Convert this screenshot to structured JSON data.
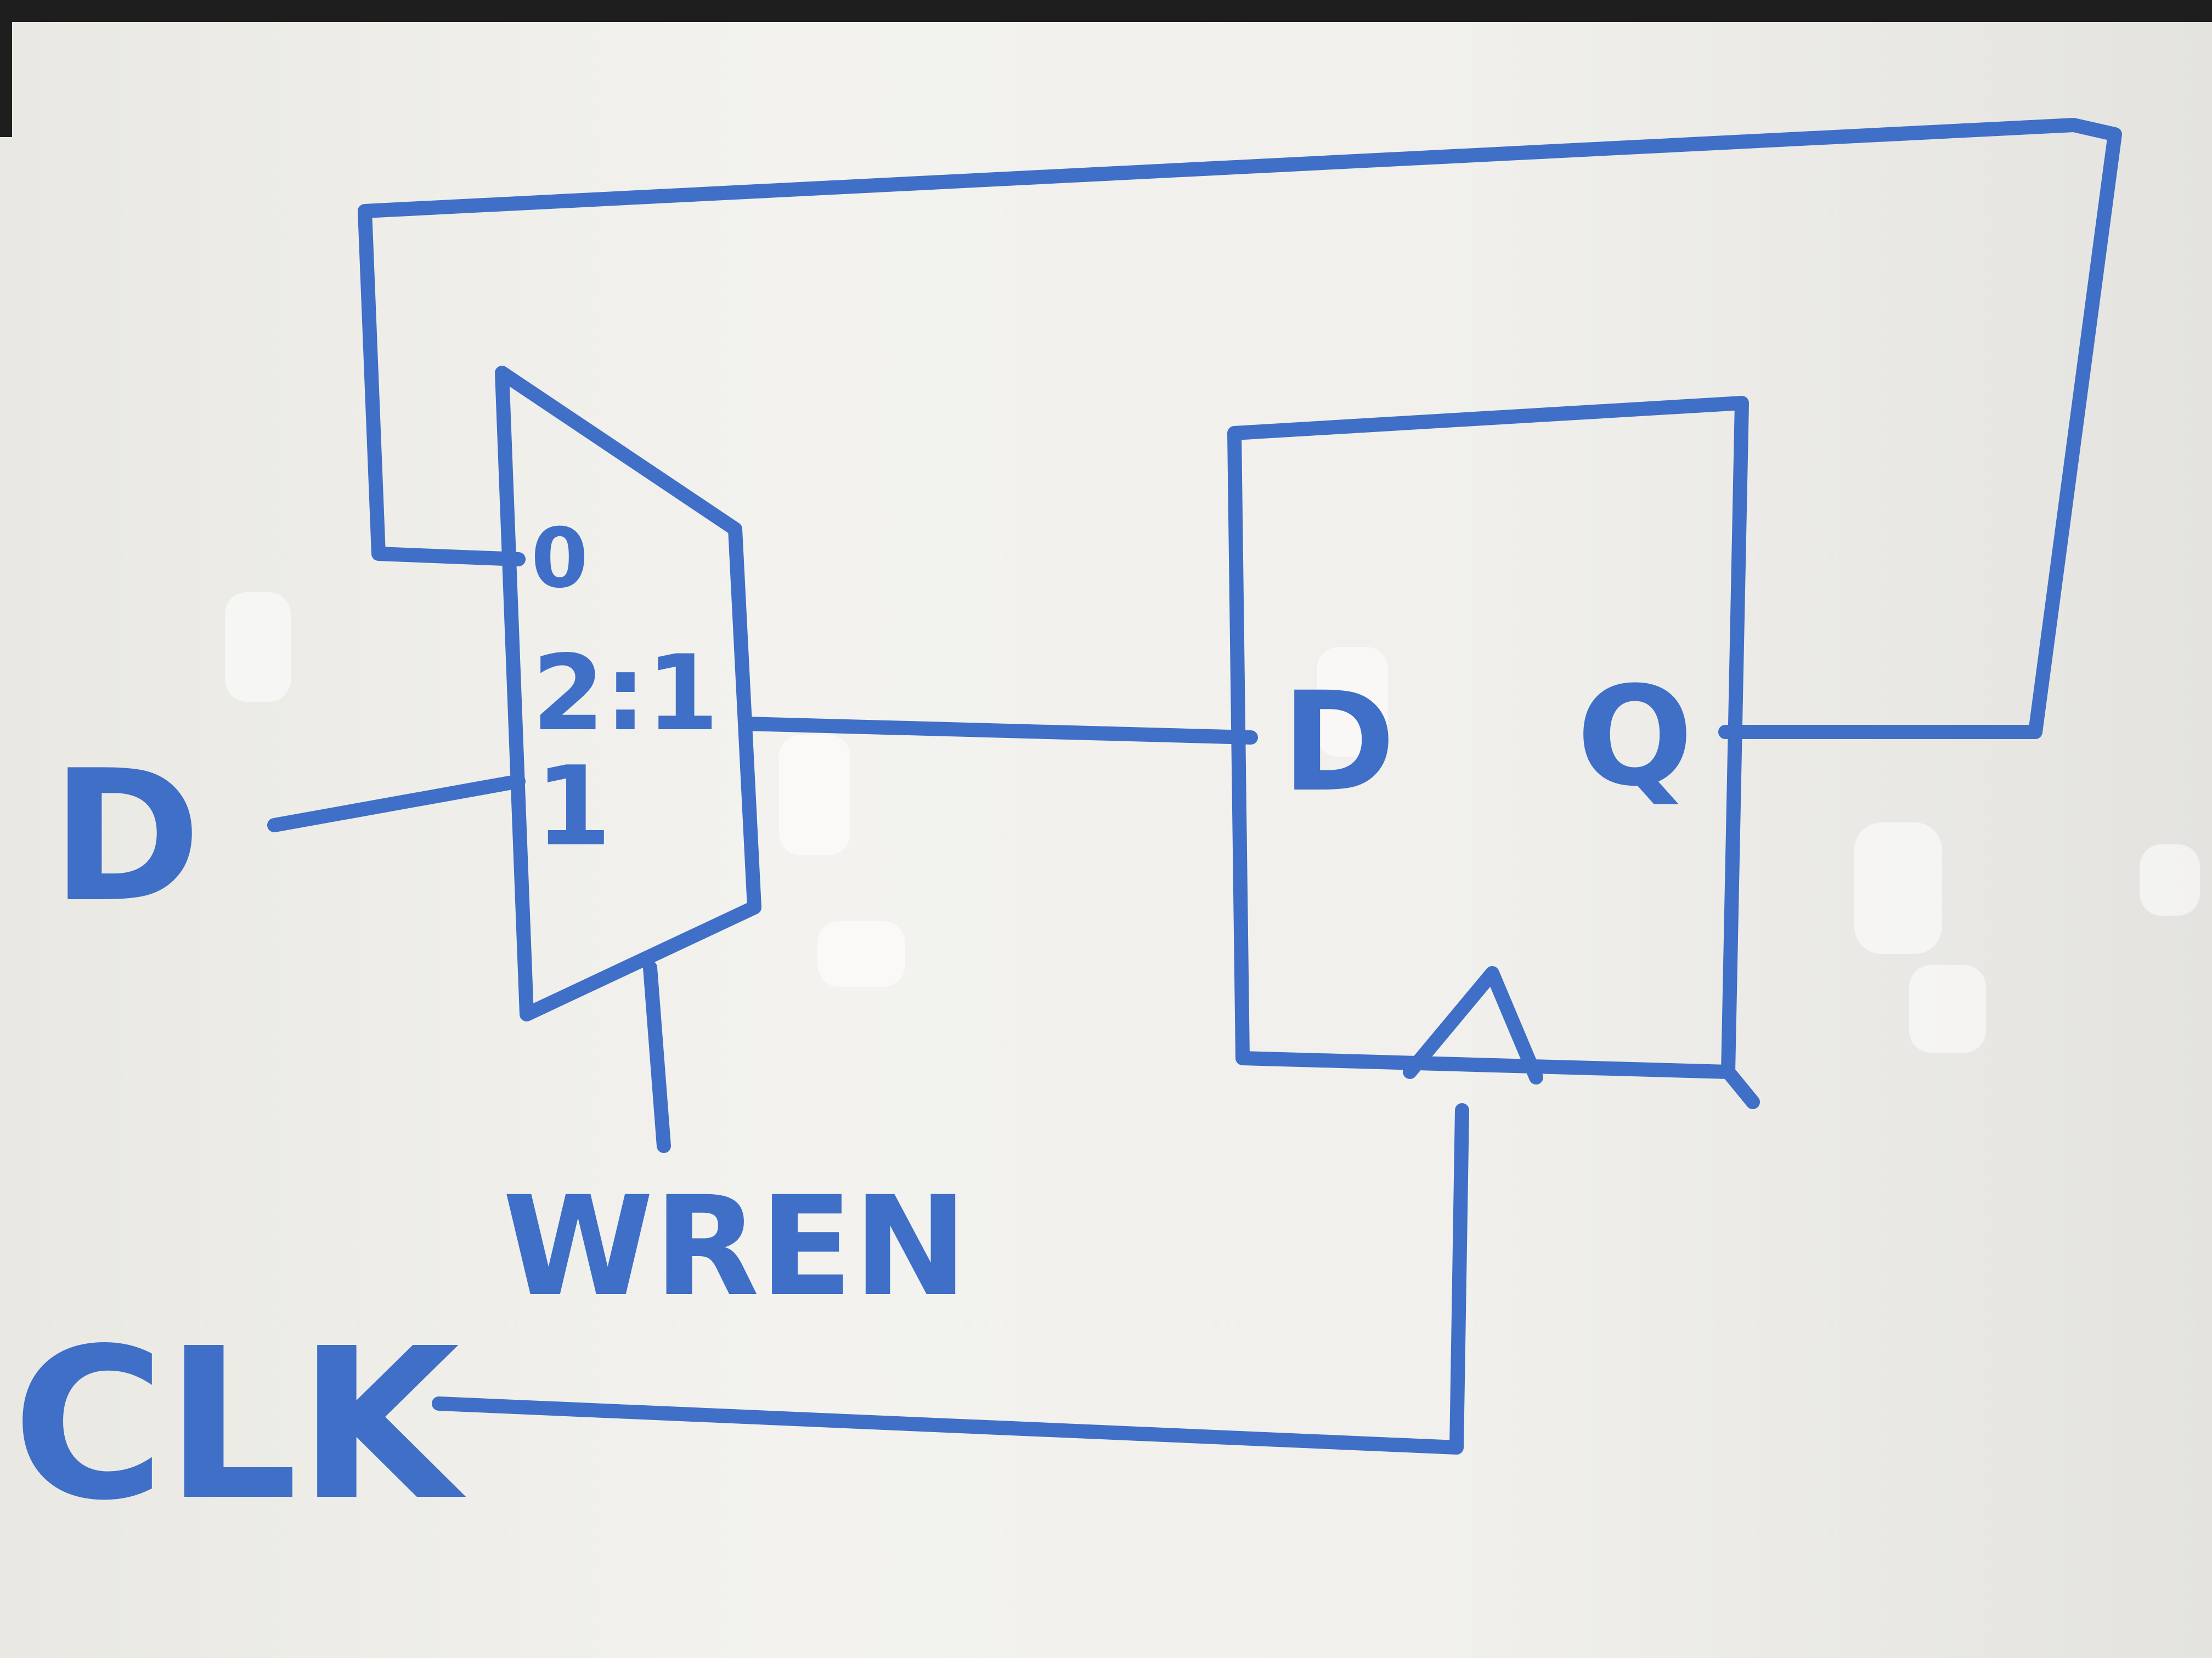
{
  "diagram": {
    "mux": {
      "type_label": "2:1",
      "input0_label": "0",
      "input1_label": "1"
    },
    "flipflop": {
      "d_label": "D",
      "q_label": "Q"
    },
    "inputs": {
      "d_label": "D",
      "wren_label": "WREN",
      "clk_label": "CLK"
    },
    "colors": {
      "marker": "#3f6fc6",
      "board": "#f1f0ec"
    }
  }
}
